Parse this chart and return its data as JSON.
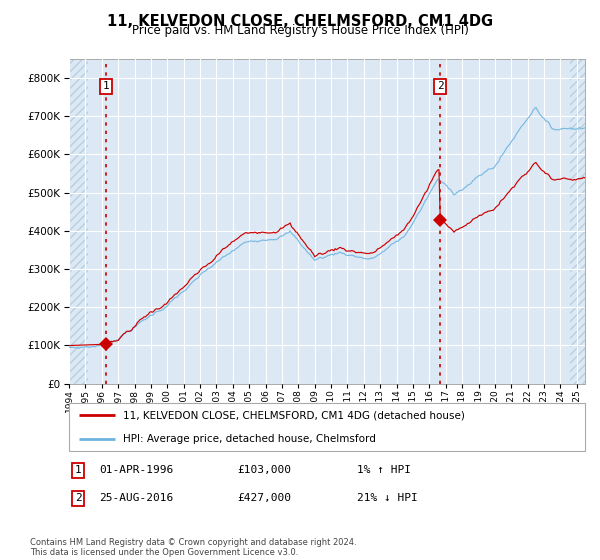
{
  "title": "11, KELVEDON CLOSE, CHELMSFORD, CM1 4DG",
  "subtitle": "Price paid vs. HM Land Registry's House Price Index (HPI)",
  "legend_line1": "11, KELVEDON CLOSE, CHELMSFORD, CM1 4DG (detached house)",
  "legend_line2": "HPI: Average price, detached house, Chelmsford",
  "annotation1_label": "1",
  "annotation1_date": "01-APR-1996",
  "annotation1_price": "£103,000",
  "annotation1_hpi": "1% ↑ HPI",
  "annotation2_label": "2",
  "annotation2_date": "25-AUG-2016",
  "annotation2_price": "£427,000",
  "annotation2_hpi": "21% ↓ HPI",
  "sale1_year": 1996.25,
  "sale1_value": 103000,
  "sale2_year": 2016.667,
  "sale2_value": 427000,
  "ylim_min": 0,
  "ylim_max": 850000,
  "xlim_min": 1994.0,
  "xlim_max": 2025.5,
  "bg_color": "#dce9f5",
  "grid_color": "#ffffff",
  "line_red_color": "#cc0000",
  "line_blue_color": "#6eb4df",
  "dashed_color": "#cc0000",
  "footer": "Contains HM Land Registry data © Crown copyright and database right 2024.\nThis data is licensed under the Open Government Licence v3.0."
}
